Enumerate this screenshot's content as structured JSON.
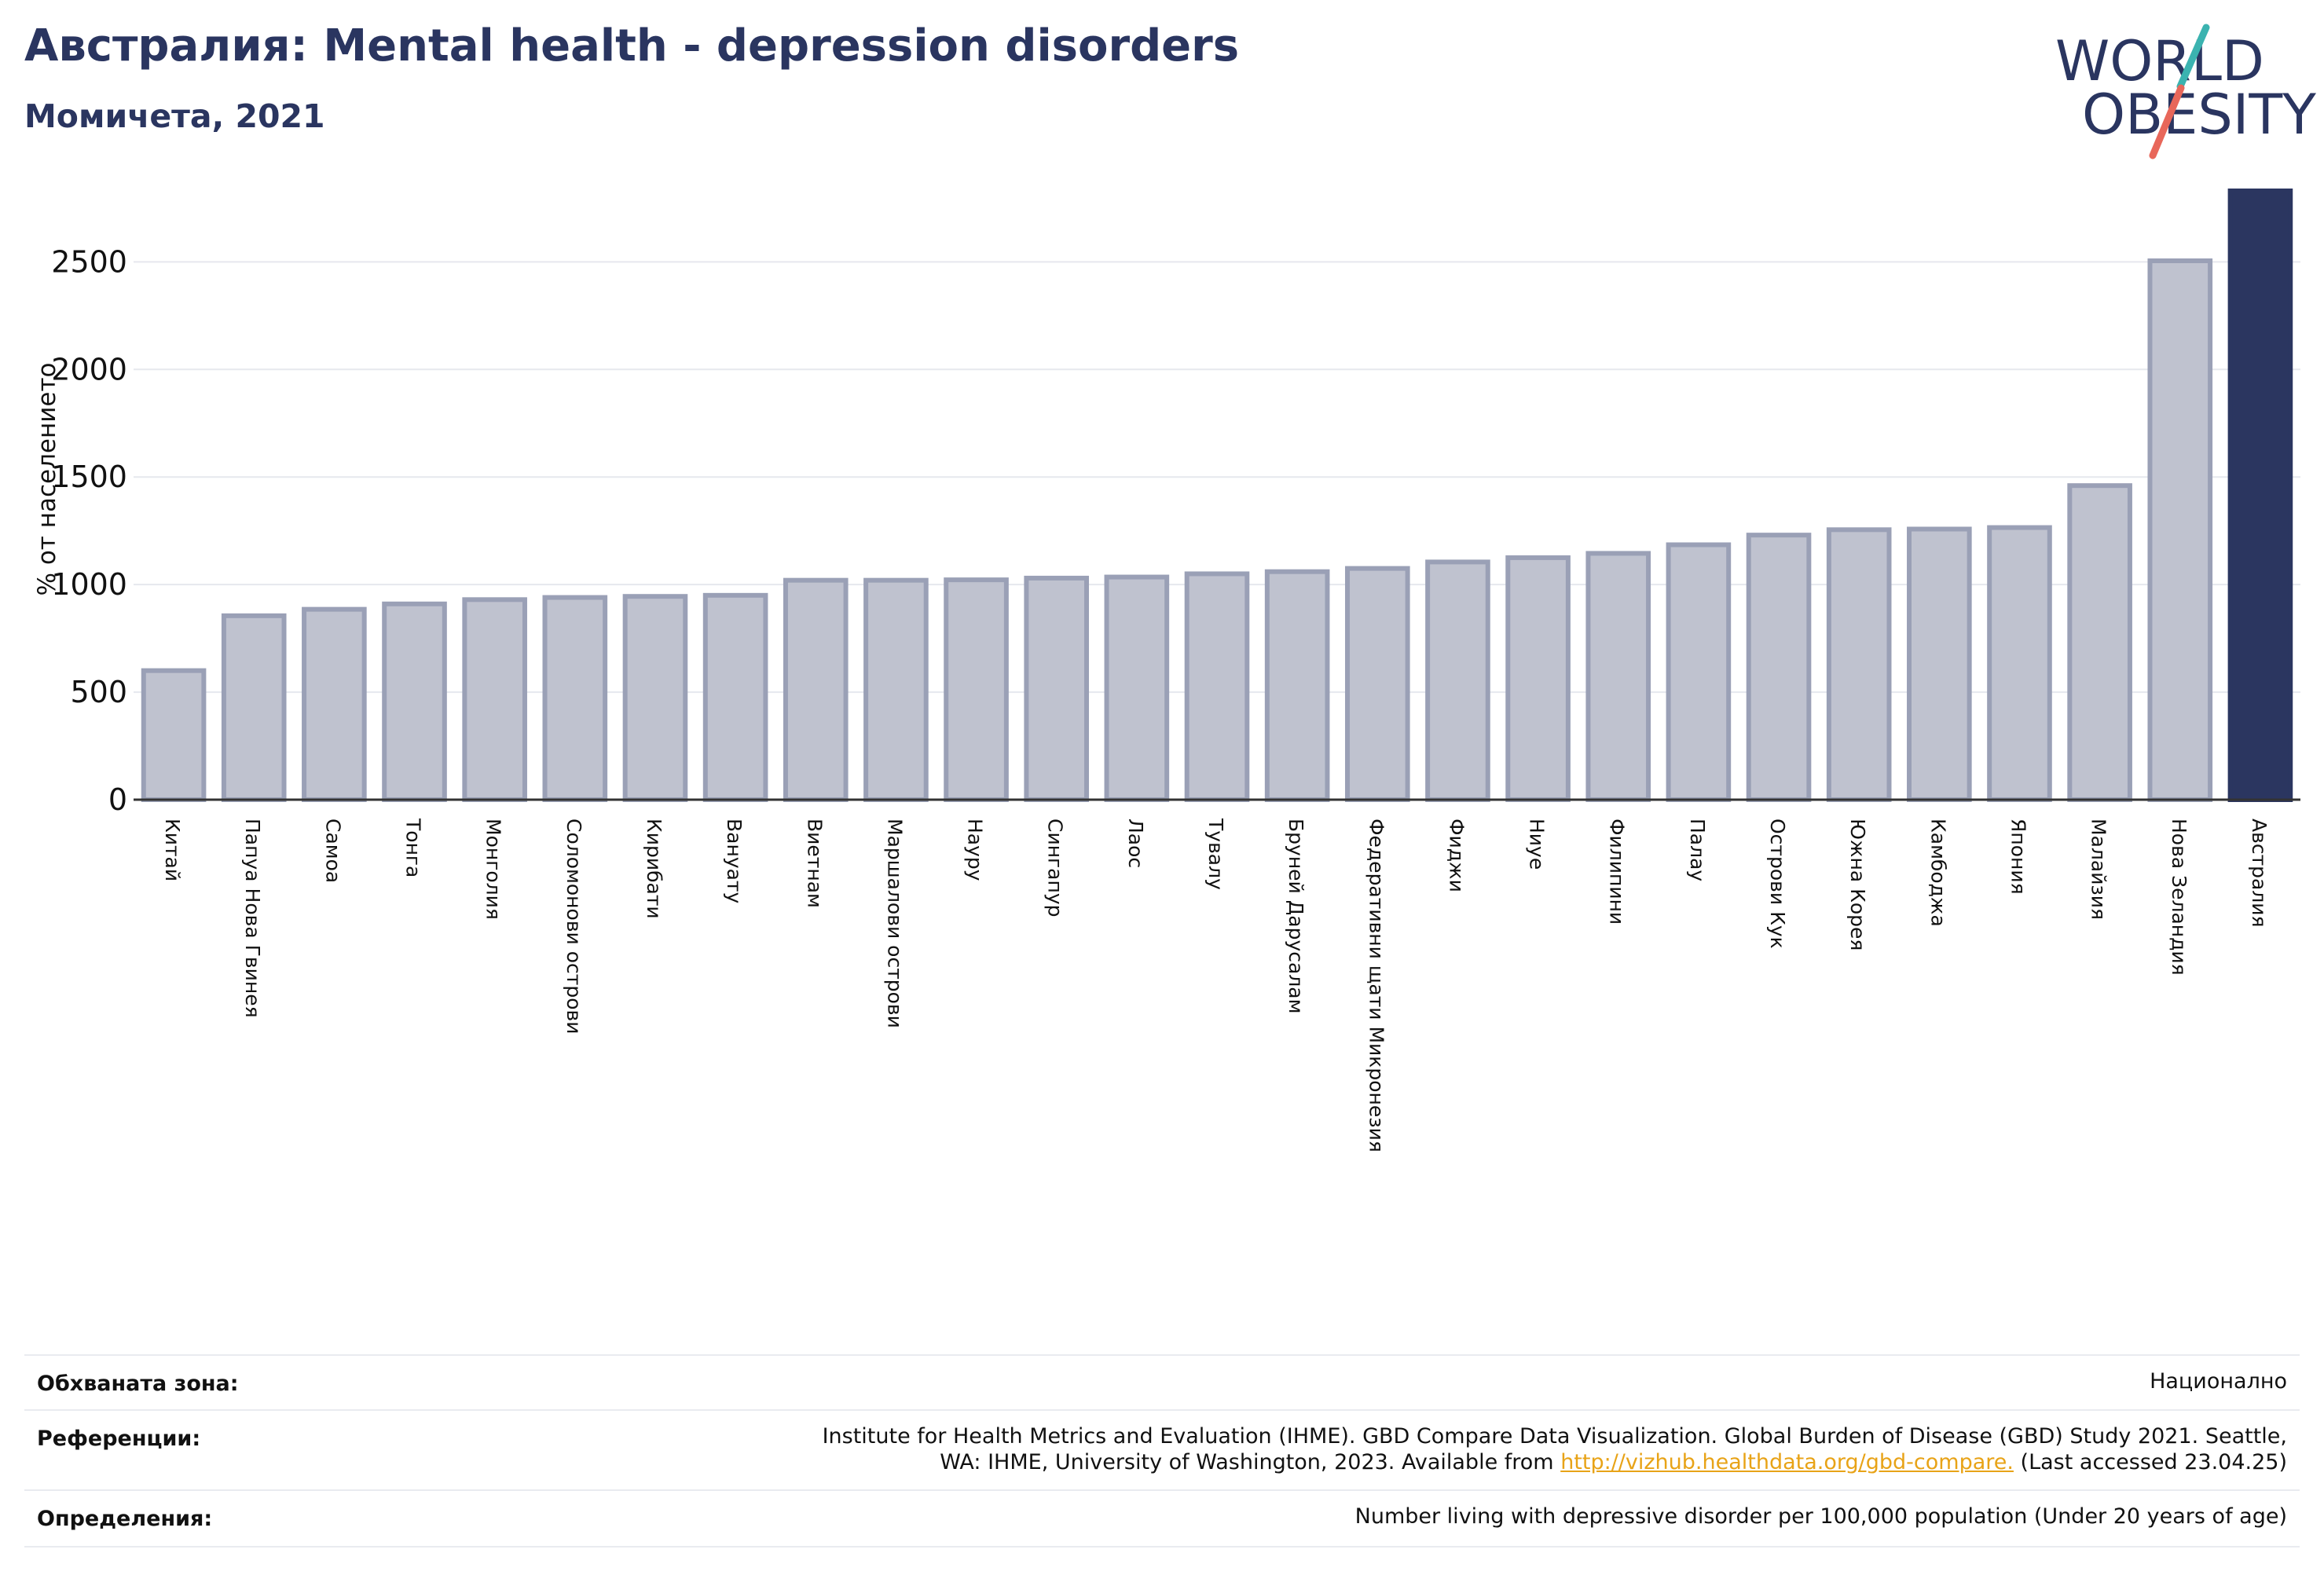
{
  "header": {
    "title": "Австралия: Mental health - depression disorders",
    "subtitle": "Момичета, 2021"
  },
  "logo": {
    "line1": "WORLD",
    "line2": "OBESITY"
  },
  "colors": {
    "title": "#2a3560",
    "bar_fill": "#bfc2cf",
    "bar_stroke": "#9aa0b6",
    "highlight": "#2b3660",
    "grid": "#e6e8ee",
    "logo_teal": "#3bb3b0",
    "logo_red": "#e8675a",
    "link": "#e8a317"
  },
  "chart_data": {
    "type": "bar",
    "ylabel": "% от населението",
    "ylim": [
      0,
      2830
    ],
    "yticks": [
      0,
      500,
      1000,
      1500,
      2000,
      2500
    ],
    "highlight": "Австралия",
    "categories": [
      "Китай",
      "Папуа Нова Гвинея",
      "Самоа",
      "Тонга",
      "Монголия",
      "Соломонови острови",
      "Кирибати",
      "Вануату",
      "Виетнам",
      "Маршалови острови",
      "Науру",
      "Сингапур",
      "Лаос",
      "Тувалу",
      "Бруней Дарусалам",
      "Федеративни щати Микронезия",
      "Фиджи",
      "Ниуе",
      "Филипини",
      "Палау",
      "Острови Кук",
      "Южна Корея",
      "Камбоджа",
      "Япония",
      "Малайзия",
      "Нова Зеландия",
      "Австралия"
    ],
    "values": [
      600,
      855,
      885,
      910,
      930,
      940,
      945,
      950,
      1020,
      1020,
      1022,
      1030,
      1035,
      1050,
      1060,
      1075,
      1105,
      1125,
      1145,
      1185,
      1230,
      1255,
      1258,
      1265,
      1460,
      2505,
      2830
    ]
  },
  "footer": {
    "coverage": {
      "label": "Обхваната зона:",
      "value": "Национално"
    },
    "references": {
      "label": "Референции:",
      "line1": "Institute for Health Metrics and Evaluation (IHME). GBD Compare Data Visualization. Global Burden of Disease (GBD) Study 2021. Seattle,",
      "line2_pre": "WA: IHME, University of Washington, 2023. Available from ",
      "link": "http://vizhub.healthdata.org/gbd-compare.",
      "line2_post": " (Last accessed 23.04.25)"
    },
    "definitions": {
      "label": "Определения:",
      "value": "Number living with depressive disorder per 100,000 population (Under 20 years of age)"
    }
  }
}
